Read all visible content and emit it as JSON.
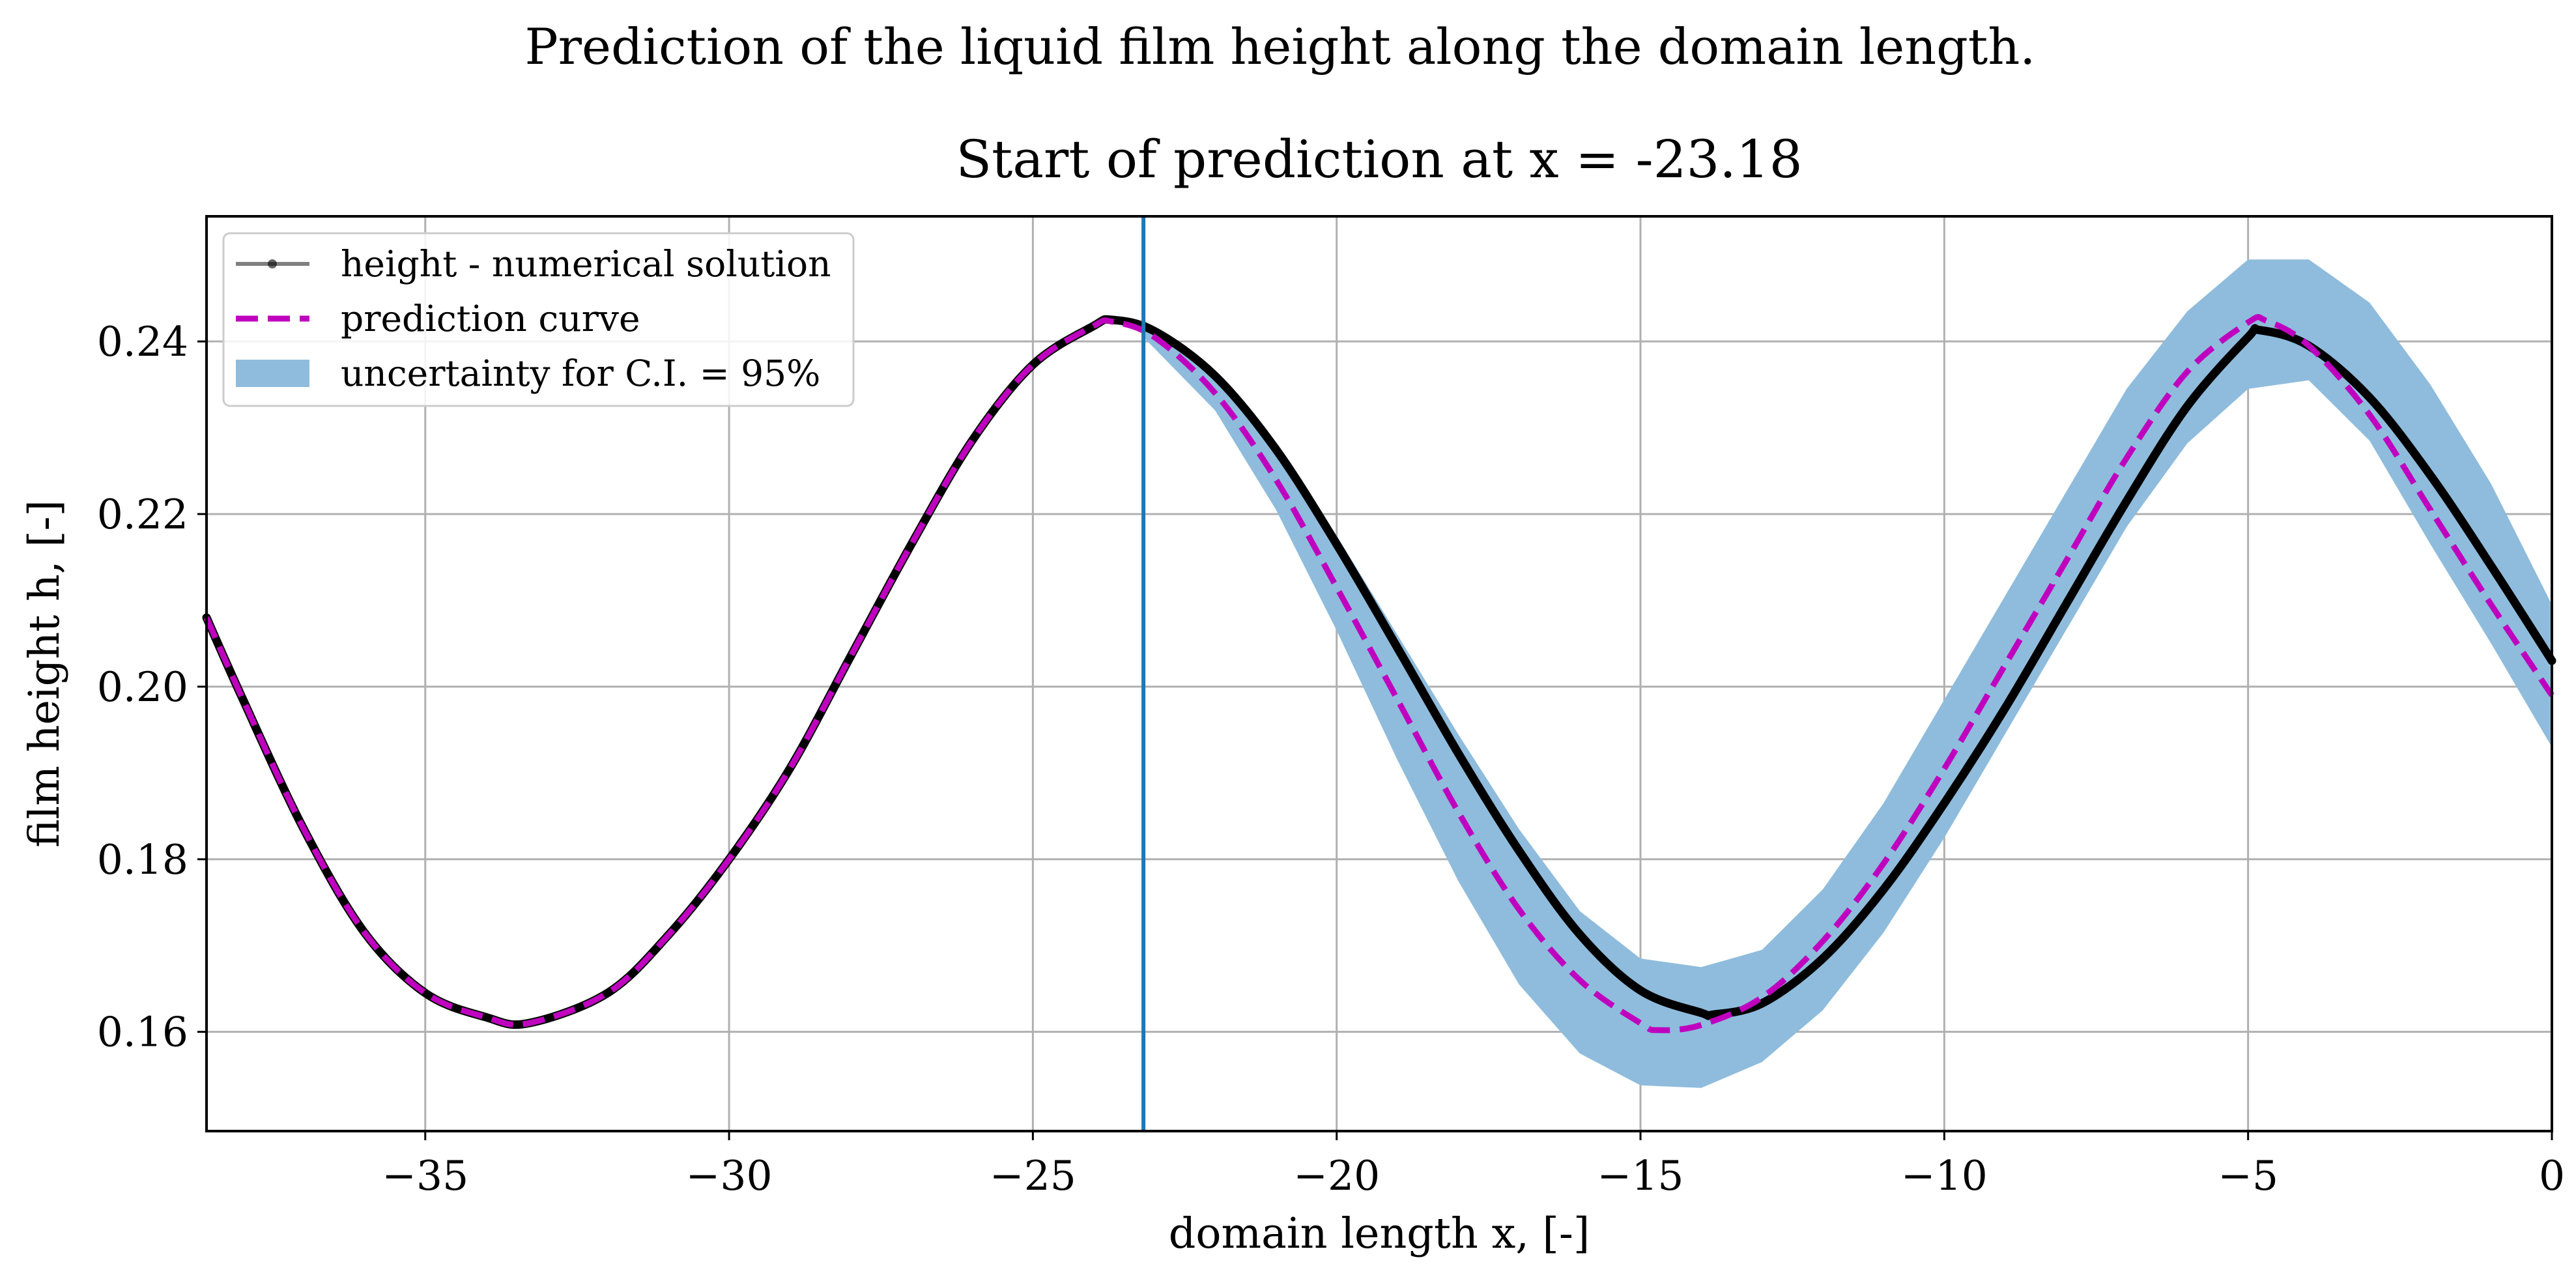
{
  "chart_data": {
    "type": "line",
    "suptitle": "Prediction of the liquid film height along the domain length.",
    "title": "Start of prediction at x = -23.18",
    "xlabel": "domain length x, [-]",
    "ylabel": "film height h, [-]",
    "xlim": [
      -38.6,
      0
    ],
    "ylim": [
      0.1485,
      0.2545
    ],
    "xticks": [
      -35,
      -30,
      -25,
      -20,
      -15,
      -10,
      -5,
      0
    ],
    "xtick_labels": [
      "−35",
      "−30",
      "−25",
      "−20",
      "−15",
      "−10",
      "−5",
      "0"
    ],
    "yticks": [
      0.16,
      0.18,
      0.2,
      0.22,
      0.24
    ],
    "ytick_labels": [
      "0.16",
      "0.18",
      "0.20",
      "0.22",
      "0.24"
    ],
    "grid": true,
    "legend_position": "top-left",
    "prediction_start_x": -23.18,
    "series": [
      {
        "name": "height - numerical solution",
        "style": "solid",
        "color": "#000000",
        "x": [
          -38.6,
          -38,
          -37,
          -36,
          -35,
          -34,
          -33.3,
          -32,
          -31,
          -30,
          -29,
          -28,
          -27,
          -26,
          -25,
          -24,
          -23.7,
          -23,
          -22,
          -21,
          -20,
          -19,
          -18,
          -17,
          -16,
          -15,
          -14,
          -13.8,
          -13,
          -12,
          -11,
          -10,
          -9,
          -8,
          -7,
          -6,
          -5,
          -4.8,
          -4,
          -3,
          -2,
          -1,
          0
        ],
        "y": [
          0.208,
          0.1985,
          0.1835,
          0.1715,
          0.1645,
          0.1617,
          0.161,
          0.1645,
          0.1712,
          0.18,
          0.1905,
          0.2035,
          0.2165,
          0.2285,
          0.2373,
          0.2418,
          0.2425,
          0.2412,
          0.236,
          0.2275,
          0.2165,
          0.2045,
          0.1923,
          0.181,
          0.1713,
          0.1648,
          0.1622,
          0.162,
          0.1633,
          0.1685,
          0.1765,
          0.1865,
          0.1975,
          0.2095,
          0.2215,
          0.2325,
          0.2405,
          0.2413,
          0.2395,
          0.2335,
          0.2245,
          0.214,
          0.203
        ]
      },
      {
        "name": "prediction curve",
        "style": "dashed",
        "color": "#bf00bf",
        "x": [
          -38.6,
          -38,
          -37,
          -36,
          -35,
          -34,
          -33.3,
          -32,
          -31,
          -30,
          -29,
          -28,
          -27,
          -26,
          -25,
          -24,
          -23.7,
          -23,
          -22,
          -21,
          -20,
          -19,
          -18,
          -17,
          -16,
          -15,
          -14.7,
          -14,
          -13,
          -12,
          -11,
          -10,
          -9,
          -8,
          -7,
          -6,
          -5,
          -4.7,
          -4,
          -3,
          -2,
          -1,
          0
        ],
        "y": [
          0.208,
          0.1985,
          0.1835,
          0.1715,
          0.1645,
          0.1617,
          0.161,
          0.1645,
          0.1712,
          0.18,
          0.1905,
          0.2035,
          0.2165,
          0.2285,
          0.2373,
          0.2418,
          0.2423,
          0.2405,
          0.234,
          0.224,
          0.2115,
          0.1985,
          0.1855,
          0.1742,
          0.166,
          0.161,
          0.1602,
          0.1608,
          0.164,
          0.1705,
          0.1795,
          0.1905,
          0.2025,
          0.2145,
          0.2265,
          0.2365,
          0.2422,
          0.2424,
          0.2395,
          0.2315,
          0.2205,
          0.2095,
          0.199
        ]
      }
    ],
    "bands": [
      {
        "name": "uncertainty for C.I. = 95%",
        "color": "#8fbcdc",
        "x": [
          -23.18,
          -22,
          -21,
          -20,
          -19,
          -18,
          -17,
          -16,
          -15,
          -14,
          -13,
          -12,
          -11,
          -10,
          -9,
          -8,
          -7,
          -6,
          -5,
          -4,
          -3,
          -2,
          -1,
          0
        ],
        "lower": [
          0.2405,
          0.232,
          0.2205,
          0.2065,
          0.1915,
          0.1775,
          0.1655,
          0.1575,
          0.1538,
          0.1535,
          0.1565,
          0.1625,
          0.1715,
          0.1825,
          0.1945,
          0.2065,
          0.2185,
          0.2282,
          0.2345,
          0.2355,
          0.2285,
          0.2165,
          0.205,
          0.193
        ],
        "upper": [
          0.2425,
          0.2365,
          0.228,
          0.2175,
          0.206,
          0.1945,
          0.1835,
          0.174,
          0.1685,
          0.1675,
          0.1695,
          0.1765,
          0.1865,
          0.1985,
          0.2105,
          0.2225,
          0.2345,
          0.2435,
          0.2495,
          0.2495,
          0.2445,
          0.235,
          0.2235,
          0.2095
        ]
      }
    ]
  }
}
